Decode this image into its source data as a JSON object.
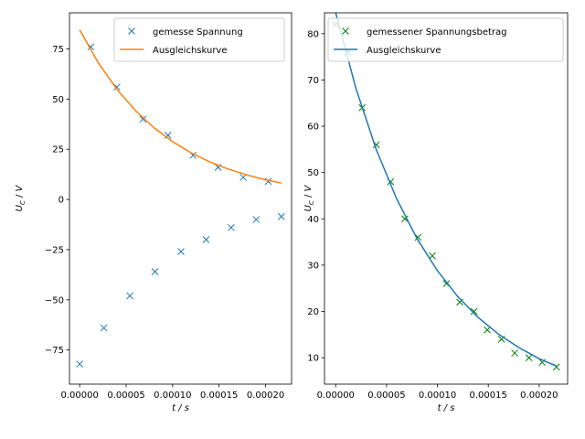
{
  "chart_data": [
    {
      "type": "line",
      "xlabel": "t / s",
      "ylabel": "U_C / V",
      "xlim": [
        -1.1e-05,
        0.000228
      ],
      "ylim": [
        -92,
        93
      ],
      "xticks": [
        0,
        5e-05,
        0.0001,
        0.00015,
        0.0002
      ],
      "xtick_labels": [
        "0.00000",
        "0.00005",
        "0.00010",
        "0.00015",
        "0.00020"
      ],
      "yticks": [
        -75,
        -50,
        -25,
        0,
        25,
        50,
        75
      ],
      "ytick_labels": [
        "−75",
        "−50",
        "−25",
        "0",
        "25",
        "50",
        "75"
      ],
      "legend_position": "top-right",
      "series": [
        {
          "name": "gemesse Spannung",
          "kind": "marker-x",
          "color": "#1f77b4",
          "x": [
            0.0,
            1.2e-05,
            2.6e-05,
            4e-05,
            5.4e-05,
            6.8e-05,
            8.1e-05,
            9.5e-05,
            0.000109,
            0.000122,
            0.000136,
            0.000149,
            0.000163,
            0.000176,
            0.00019,
            0.000203,
            0.000217
          ],
          "y": [
            -82,
            76,
            -64,
            56,
            -48,
            40,
            -36,
            32,
            -26,
            22,
            -20,
            16,
            -14,
            11,
            -10,
            9,
            -8.5
          ]
        },
        {
          "name": "Ausgleichskurve",
          "kind": "line",
          "color": "#ff7f0e",
          "x": [
            0.0,
            2e-05,
            4e-05,
            6e-05,
            8e-05,
            0.0001,
            0.00012,
            0.00014,
            0.00016,
            0.00018,
            0.0002,
            0.000217
          ],
          "y": [
            84.5,
            68.1,
            54.9,
            44.3,
            35.7,
            28.8,
            23.2,
            18.7,
            15.1,
            12.2,
            9.8,
            8.2
          ]
        }
      ]
    },
    {
      "type": "line",
      "xlabel": "t / s",
      "ylabel": "U_C / V",
      "xlim": [
        -1.1e-05,
        0.000228
      ],
      "ylim": [
        4.3,
        84.5
      ],
      "xticks": [
        0,
        5e-05,
        0.0001,
        0.00015,
        0.0002
      ],
      "xtick_labels": [
        "0.00000",
        "0.00005",
        "0.00010",
        "0.00015",
        "0.00020"
      ],
      "yticks": [
        10,
        20,
        30,
        40,
        50,
        60,
        70,
        80
      ],
      "ytick_labels": [
        "10",
        "20",
        "30",
        "40",
        "50",
        "60",
        "70",
        "80"
      ],
      "legend_position": "top",
      "series": [
        {
          "name": "gemessener Spannungsbetrag",
          "kind": "marker-x",
          "color": "#008000",
          "x": [
            0.0,
            1.2e-05,
            2.6e-05,
            4e-05,
            5.4e-05,
            6.8e-05,
            8.1e-05,
            9.5e-05,
            0.000109,
            0.000122,
            0.000136,
            0.000149,
            0.000163,
            0.000176,
            0.00019,
            0.000203,
            0.000217
          ],
          "y": [
            82,
            76,
            64,
            56,
            48,
            40,
            36,
            32,
            26,
            22,
            20,
            16,
            14,
            11,
            10,
            9,
            8
          ]
        },
        {
          "name": "Ausgleichskurve",
          "kind": "line",
          "color": "#1f77b4",
          "x": [
            0.0,
            2e-05,
            4e-05,
            6e-05,
            8e-05,
            0.0001,
            0.00012,
            0.00014,
            0.00016,
            0.00018,
            0.0002,
            0.000217
          ],
          "y": [
            84.5,
            68.1,
            54.9,
            44.3,
            35.7,
            28.8,
            23.2,
            18.7,
            15.1,
            12.2,
            9.8,
            8.2
          ]
        }
      ]
    }
  ]
}
